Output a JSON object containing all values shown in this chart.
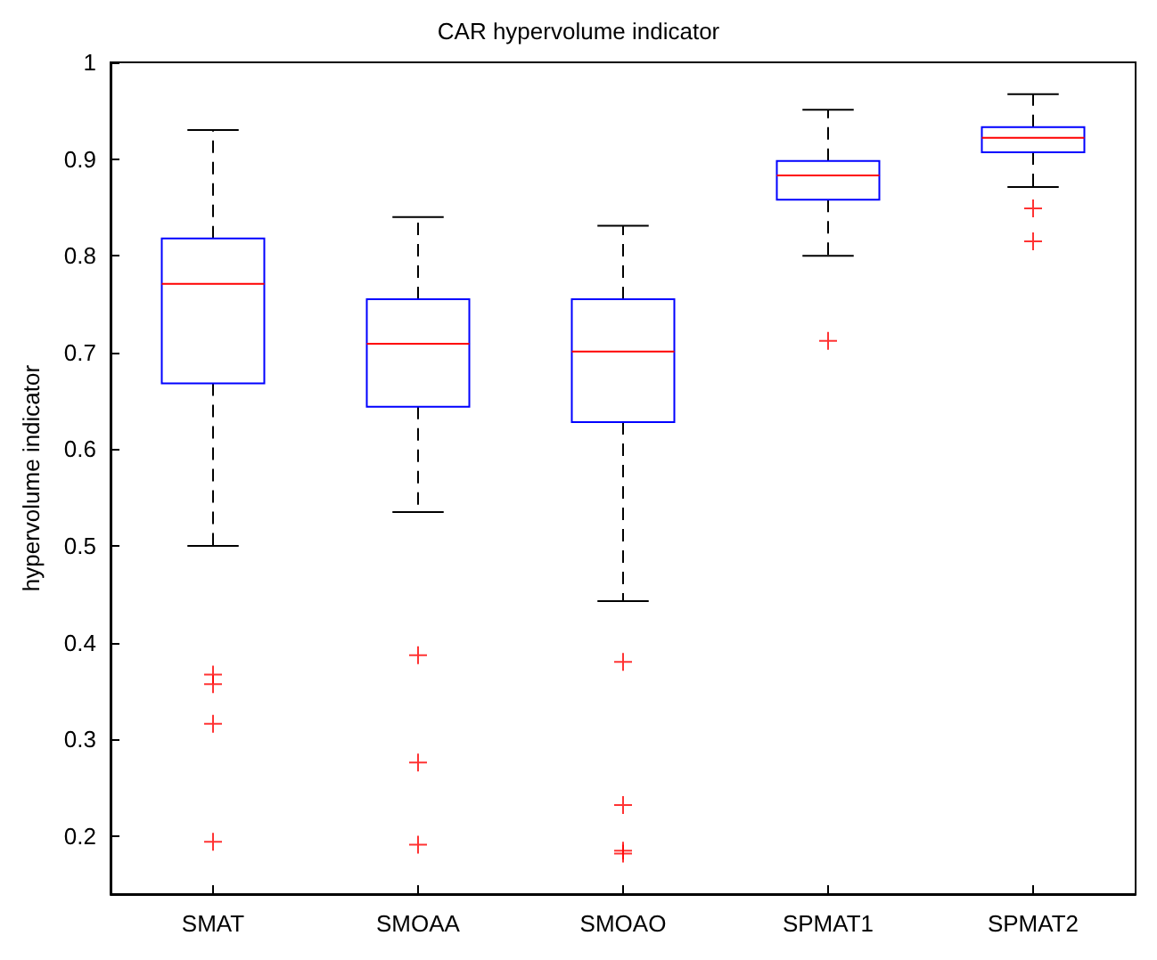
{
  "chart_data": {
    "type": "box",
    "title": "CAR hypervolume indicator",
    "ylabel": "hypervolume indicator",
    "categories": [
      "SMAT",
      "SMOAA",
      "SMOAO",
      "SPMAT1",
      "SPMAT2"
    ],
    "boxes": [
      {
        "low": 0.5,
        "q1": 0.668,
        "median": 0.771,
        "q3": 0.818,
        "high": 0.93,
        "outliers": [
          0.367,
          0.357,
          0.316,
          0.194
        ]
      },
      {
        "low": 0.535,
        "q1": 0.644,
        "median": 0.709,
        "q3": 0.755,
        "high": 0.84,
        "outliers": [
          0.387,
          0.276,
          0.191
        ]
      },
      {
        "low": 0.443,
        "q1": 0.628,
        "median": 0.701,
        "q3": 0.755,
        "high": 0.831,
        "outliers": [
          0.38,
          0.232,
          0.185,
          0.182
        ]
      },
      {
        "low": 0.8,
        "q1": 0.858,
        "median": 0.883,
        "q3": 0.898,
        "high": 0.951,
        "outliers": [
          0.712
        ]
      },
      {
        "low": 0.871,
        "q1": 0.907,
        "median": 0.922,
        "q3": 0.933,
        "high": 0.967,
        "outliers": [
          0.849,
          0.815
        ]
      }
    ],
    "ylim": [
      0.14,
      1
    ],
    "yticks": [
      0.2,
      0.3,
      0.4,
      0.5,
      0.6,
      0.7,
      0.8,
      0.9,
      1
    ],
    "marker": "cross",
    "grid": false
  }
}
